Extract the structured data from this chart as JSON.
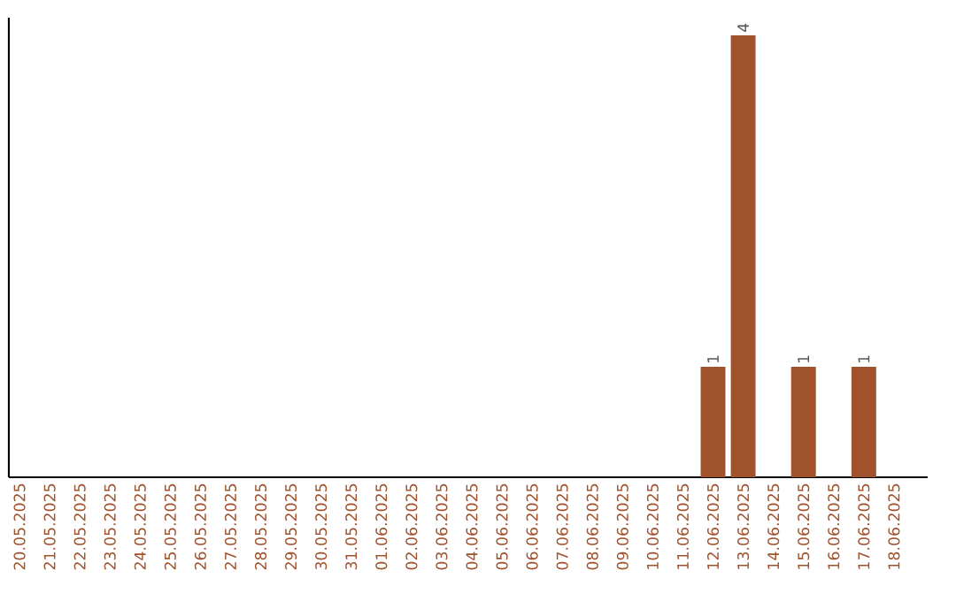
{
  "chart_data": {
    "type": "bar",
    "categories": [
      "20.05.2025",
      "21.05.2025",
      "22.05.2025",
      "23.05.2025",
      "24.05.2025",
      "25.05.2025",
      "26.05.2025",
      "27.05.2025",
      "28.05.2025",
      "29.05.2025",
      "30.05.2025",
      "31.05.2025",
      "01.06.2025",
      "02.06.2025",
      "03.06.2025",
      "04.06.2025",
      "05.06.2025",
      "06.06.2025",
      "07.06.2025",
      "08.06.2025",
      "09.06.2025",
      "10.06.2025",
      "11.06.2025",
      "12.06.2025",
      "13.06.2025",
      "14.06.2025",
      "15.06.2025",
      "16.06.2025",
      "17.06.2025",
      "18.06.2025"
    ],
    "values": [
      null,
      null,
      null,
      null,
      null,
      null,
      null,
      null,
      null,
      null,
      null,
      null,
      null,
      null,
      null,
      null,
      null,
      null,
      null,
      null,
      null,
      null,
      null,
      1,
      4,
      null,
      1,
      null,
      1,
      null
    ],
    "value_labels": [
      null,
      null,
      null,
      null,
      null,
      null,
      null,
      null,
      null,
      null,
      null,
      null,
      null,
      null,
      null,
      null,
      null,
      null,
      null,
      null,
      null,
      null,
      null,
      "1",
      "4",
      null,
      "1",
      null,
      "1",
      null
    ],
    "color": "#a0522d"
  }
}
